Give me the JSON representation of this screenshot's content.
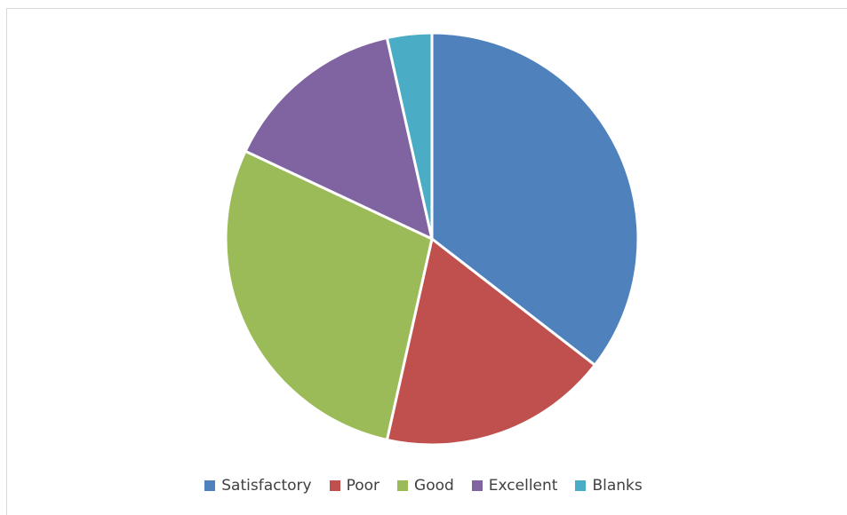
{
  "chart_data": {
    "type": "pie",
    "title": "",
    "categories": [
      "Satisfactory",
      "Poor",
      "Good",
      "Excellent",
      "Blanks"
    ],
    "values": [
      35.5,
      18,
      28.5,
      14.5,
      3.5
    ],
    "colors": [
      "#4f81bd",
      "#c0504d",
      "#9bbb59",
      "#8064a2",
      "#4bacc6"
    ],
    "start_angle": 0,
    "direction": "clockwise",
    "legend": {
      "position": "bottom",
      "items": [
        "Satisfactory",
        "Poor",
        "Good",
        "Excellent",
        "Blanks"
      ]
    }
  }
}
